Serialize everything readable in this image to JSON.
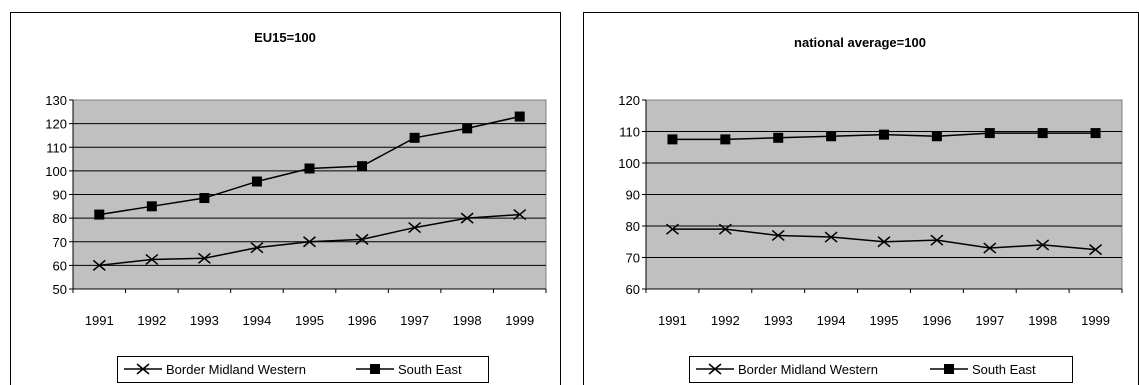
{
  "chart_data": [
    {
      "type": "line",
      "title": "EU15=100",
      "x": [
        "1991",
        "1992",
        "1993",
        "1994",
        "1995",
        "1996",
        "1997",
        "1998",
        "1999"
      ],
      "ylim": [
        50,
        130
      ],
      "yticks": [
        "50",
        "60",
        "70",
        "80",
        "90",
        "100",
        "110",
        "120",
        "130"
      ],
      "grid": true,
      "legend_position": "bottom",
      "plot_background": "#c0c0c0",
      "series": [
        {
          "name": "Border Midland Western",
          "marker": "x",
          "values": [
            60,
            62.5,
            63,
            67.5,
            70,
            71,
            76,
            80,
            81.5
          ]
        },
        {
          "name": "South East",
          "marker": "square",
          "values": [
            81.5,
            85,
            88.5,
            95.5,
            101,
            102,
            114,
            118,
            123
          ]
        }
      ]
    },
    {
      "type": "line",
      "title": "national average=100",
      "x": [
        "1991",
        "1992",
        "1993",
        "1994",
        "1995",
        "1996",
        "1997",
        "1998",
        "1999"
      ],
      "ylim": [
        60,
        120
      ],
      "yticks": [
        "60",
        "70",
        "80",
        "90",
        "100",
        "110",
        "120"
      ],
      "grid": true,
      "legend_position": "bottom",
      "plot_background": "#c0c0c0",
      "series": [
        {
          "name": "Border Midland Western",
          "marker": "x",
          "values": [
            79,
            79,
            77,
            76.5,
            75,
            75.5,
            73,
            74,
            72.5
          ]
        },
        {
          "name": "South East",
          "marker": "square",
          "values": [
            107.5,
            107.5,
            108,
            108.5,
            109,
            108.5,
            109.5,
            109.5,
            109.5
          ]
        }
      ]
    }
  ]
}
